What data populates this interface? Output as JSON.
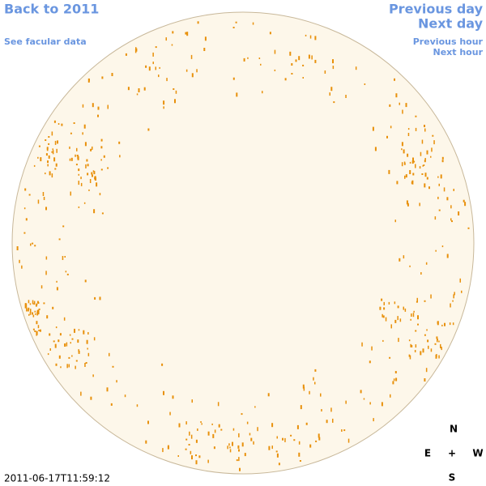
{
  "links": {
    "back_year": "Back to 2011",
    "facular": "See facular data",
    "previous_day": "Previous day",
    "next_day": "Next day",
    "previous_hour": "Previous hour",
    "next_hour": "Next hour"
  },
  "timestamp": "2011-06-17T11:59:12",
  "compass": {
    "north": "N",
    "east": "E",
    "center": "+",
    "west": "W",
    "south": "S"
  }
}
